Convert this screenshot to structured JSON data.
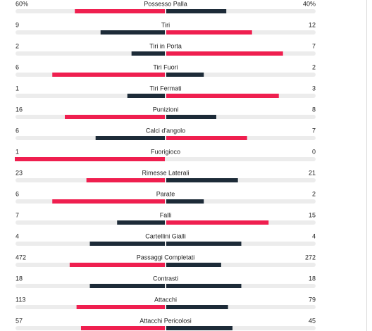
{
  "stats": [
    {
      "label": "Possesso Palla",
      "home": {
        "value": 60,
        "label": "60%"
      },
      "away": {
        "value": 40,
        "label": "40%"
      }
    },
    {
      "label": "Tiri",
      "home": 9,
      "away": 12
    },
    {
      "label": "Tiri in Porta",
      "home": 2,
      "away": 7
    },
    {
      "label": "Tiri Fuori",
      "home": 6,
      "away": 2
    },
    {
      "label": "Tiri Fermati",
      "home": 1,
      "away": 3
    },
    {
      "label": "Punizioni",
      "home": 16,
      "away": 8
    },
    {
      "label": "Calci d'angolo",
      "home": 6,
      "away": 7
    },
    {
      "label": "Fuorigioco",
      "home": 1,
      "away": 0
    },
    {
      "label": "Rimesse Laterali",
      "home": 23,
      "away": 21
    },
    {
      "label": "Parate",
      "home": 6,
      "away": 2
    },
    {
      "label": "Falli",
      "home": 7,
      "away": 15
    },
    {
      "label": "Cartellini Gialli",
      "home": 4,
      "away": 4
    },
    {
      "label": "Passaggi Completati",
      "home": 472,
      "away": 272
    },
    {
      "label": "Contrasti",
      "home": 18,
      "away": 18
    },
    {
      "label": "Attacchi",
      "home": 113,
      "away": 79
    },
    {
      "label": "Attacchi Pericolosi",
      "home": 57,
      "away": 45
    }
  ],
  "colors": {
    "leading": "#ef1f4f",
    "trailing": "#1d2b38",
    "track": "#ececec"
  }
}
